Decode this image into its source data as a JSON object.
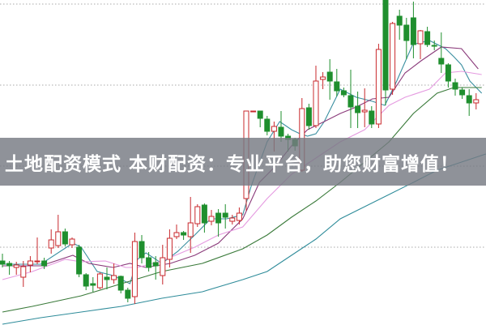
{
  "banner": {
    "text": "土地配资模式 本财配资：专业平台，助您财富增值！"
  },
  "chart_data": {
    "type": "candlestick",
    "title": "",
    "xlabel": "",
    "ylabel": "",
    "ylim": [
      0,
      40
    ],
    "grid": {
      "horizontal": true,
      "style": "dotted",
      "levels": [
        39.5,
        29.5,
        19.5,
        9.5
      ]
    },
    "colors": {
      "up": "#c8282c",
      "down": "#1f8f2e",
      "grid": "#a8a8a8",
      "ma5": "#3a8fa0",
      "ma10": "#8a3a7a",
      "ma20": "#e59ae0",
      "ma60": "#3a7a3a",
      "ma120": "#2f8c9a"
    },
    "candles": [
      [
        7.8,
        8.7,
        7.0,
        7.4
      ],
      [
        7.5,
        7.8,
        6.1,
        7.2
      ],
      [
        7.0,
        7.7,
        6.1,
        7.3
      ],
      [
        5.8,
        7.8,
        4.6,
        7.1
      ],
      [
        7.3,
        8.4,
        6.4,
        7.8
      ],
      [
        7.7,
        10.7,
        7.4,
        7.8
      ],
      [
        7.8,
        8.2,
        6.8,
        7.2
      ],
      [
        9.4,
        11.7,
        8.7,
        10.4
      ],
      [
        9.7,
        13.5,
        9.4,
        11.4
      ],
      [
        11.4,
        11.8,
        9.6,
        9.9
      ],
      [
        9.8,
        10.7,
        9.4,
        10.5
      ],
      [
        9.5,
        9.8,
        5.8,
        6.2
      ],
      [
        6.1,
        6.3,
        4.2,
        4.7
      ],
      [
        5.0,
        5.8,
        4.0,
        4.8
      ],
      [
        4.5,
        6.4,
        4.3,
        6.2
      ],
      [
        5.8,
        7.0,
        4.3,
        5.5
      ],
      [
        5.5,
        7.5,
        5.0,
        6.0
      ],
      [
        5.9,
        6.0,
        3.8,
        4.2
      ],
      [
        4.2,
        4.5,
        2.7,
        3.2
      ],
      [
        3.4,
        11.3,
        2.5,
        10.2
      ],
      [
        10.2,
        11.0,
        7.5,
        8.2
      ],
      [
        8.2,
        8.9,
        6.5,
        7.0
      ],
      [
        7.6,
        8.4,
        5.5,
        7.2
      ],
      [
        6.0,
        9.8,
        4.9,
        8.2
      ],
      [
        8.0,
        11.7,
        7.0,
        10.6
      ],
      [
        10.8,
        12.3,
        10.5,
        11.3
      ],
      [
        11.3,
        11.5,
        10.4,
        11.0
      ],
      [
        10.8,
        15.7,
        8.8,
        12.5
      ],
      [
        12.4,
        14.8,
        12.0,
        14.5
      ],
      [
        14.7,
        14.9,
        11.3,
        12.5
      ],
      [
        12.7,
        14.1,
        12.2,
        13.3
      ],
      [
        13.7,
        14.2,
        10.8,
        12.5
      ],
      [
        13.7,
        14.8,
        11.8,
        13.2
      ],
      [
        12.7,
        13.5,
        12.3,
        13.1
      ],
      [
        12.8,
        14.4,
        12.3,
        13.7
      ],
      [
        15.5,
        26.3,
        14.0,
        26.3
      ],
      [
        26.2,
        26.3,
        26.2,
        26.3
      ],
      [
        26.3,
        26.3,
        24.3,
        25.4
      ],
      [
        25.3,
        25.7,
        23.3,
        23.8
      ],
      [
        23.8,
        25.0,
        21.3,
        24.4
      ],
      [
        24.3,
        26.3,
        22.5,
        23.2
      ],
      [
        23.2,
        23.5,
        21.3,
        22.8
      ],
      [
        22.8,
        23.0,
        21.4,
        22.0
      ],
      [
        19.0,
        27.9,
        18.8,
        26.6
      ],
      [
        26.7,
        27.2,
        24.0,
        24.5
      ],
      [
        24.5,
        31.9,
        24.2,
        30.0
      ],
      [
        30.2,
        31.1,
        29.0,
        30.5
      ],
      [
        31.1,
        32.7,
        27.7,
        30.0
      ],
      [
        29.9,
        31.5,
        28.1,
        28.8
      ],
      [
        28.8,
        29.2,
        28.0,
        28.3
      ],
      [
        28.2,
        31.4,
        24.2,
        26.8
      ],
      [
        26.9,
        28.7,
        24.2,
        26.1
      ],
      [
        26.2,
        29.1,
        24.3,
        26.4
      ],
      [
        26.3,
        26.9,
        24.2,
        24.7
      ],
      [
        24.7,
        34.6,
        24.2,
        33.9
      ],
      [
        40.0,
        40.0,
        27.0,
        28.9
      ],
      [
        29.0,
        37.3,
        28.3,
        37.1
      ],
      [
        38.0,
        38.8,
        35.1,
        36.9
      ],
      [
        36.9,
        37.8,
        32.7,
        35.0
      ],
      [
        37.8,
        39.8,
        32.8,
        34.5
      ],
      [
        34.6,
        36.3,
        32.7,
        36.2
      ],
      [
        36.1,
        36.7,
        34.2,
        34.5
      ],
      [
        34.4,
        35.0,
        33.8,
        34.3
      ],
      [
        32.8,
        36.0,
        31.0,
        32.1
      ],
      [
        32.0,
        32.2,
        29.2,
        30.0
      ],
      [
        29.8,
        30.3,
        28.2,
        29.0
      ],
      [
        28.9,
        29.2,
        27.8,
        28.3
      ],
      [
        28.2,
        29.0,
        25.7,
        27.3
      ],
      [
        27.3,
        28.5,
        26.5,
        27.7
      ]
    ],
    "candle_fields": [
      "open",
      "high",
      "low",
      "close"
    ],
    "moving_averages": [
      {
        "key": "ma5",
        "points": [
          [
            0,
            7.4
          ],
          [
            5.5,
            7.4
          ],
          [
            10.1,
            10.0
          ],
          [
            11.3,
            9.5
          ],
          [
            13.6,
            6.5
          ],
          [
            15.9,
            6.0
          ],
          [
            18.3,
            5.0
          ],
          [
            19.4,
            8.0
          ],
          [
            20.6,
            8.8
          ],
          [
            22.9,
            7.5
          ],
          [
            25.2,
            9.0
          ],
          [
            27.6,
            11.0
          ],
          [
            29.9,
            13.0
          ],
          [
            32.2,
            13.0
          ],
          [
            34.5,
            13.5
          ],
          [
            35.7,
            17.0
          ],
          [
            38,
            22.5
          ],
          [
            39.8,
            25.0
          ],
          [
            41.5,
            24.0
          ],
          [
            42.7,
            23.5
          ],
          [
            43.8,
            23.2
          ],
          [
            45,
            23.5
          ],
          [
            46.2,
            25.0
          ],
          [
            48.5,
            29.0
          ],
          [
            50.8,
            28.0
          ],
          [
            53.1,
            27.5
          ],
          [
            54.9,
            27.0
          ],
          [
            56.6,
            30.0
          ],
          [
            58.9,
            34.5
          ],
          [
            61.3,
            35.0
          ],
          [
            63.6,
            34.0
          ],
          [
            64.8,
            33.0
          ],
          [
            65.9,
            32.0
          ],
          [
            67.1,
            30.0
          ],
          [
            68.8,
            28.5
          ]
        ]
      },
      {
        "key": "ma10",
        "points": [
          [
            0,
            7.2
          ],
          [
            5.5,
            7.2
          ],
          [
            10.1,
            8.5
          ],
          [
            12.4,
            7.5
          ],
          [
            15.9,
            7.0
          ],
          [
            18.3,
            7.5
          ],
          [
            20.6,
            7.0
          ],
          [
            24.1,
            7.5
          ],
          [
            27.6,
            8.5
          ],
          [
            31,
            10
          ],
          [
            34.5,
            13
          ],
          [
            36.9,
            17.5
          ],
          [
            39.2,
            19.5
          ],
          [
            41.5,
            22
          ],
          [
            43.8,
            24
          ],
          [
            46.2,
            25
          ],
          [
            48.5,
            26
          ],
          [
            50.8,
            26.8
          ],
          [
            53.1,
            27.8
          ],
          [
            55.5,
            28
          ],
          [
            57.8,
            31
          ],
          [
            60.1,
            32.5
          ],
          [
            63,
            34.2
          ],
          [
            65.9,
            34
          ],
          [
            68.3,
            31.5
          ]
        ]
      },
      {
        "key": "ma20",
        "points": [
          [
            0,
            5.5
          ],
          [
            4.3,
            6.5
          ],
          [
            9,
            8
          ],
          [
            11.3,
            7.7
          ],
          [
            14.8,
            7.8
          ],
          [
            17.7,
            7
          ],
          [
            19.4,
            7
          ],
          [
            22.9,
            7.8
          ],
          [
            27.6,
            9.5
          ],
          [
            31,
            11
          ],
          [
            34.5,
            12
          ],
          [
            38,
            15.5
          ],
          [
            41.5,
            18.5
          ],
          [
            45,
            20.5
          ],
          [
            48.5,
            22.5
          ],
          [
            52,
            24
          ],
          [
            55.5,
            27
          ],
          [
            57.8,
            28
          ],
          [
            61.3,
            29
          ],
          [
            63.6,
            31
          ],
          [
            65.9,
            31.2
          ],
          [
            68.8,
            30.8
          ]
        ]
      },
      {
        "key": "ma60",
        "points": [
          [
            0,
            1.5
          ],
          [
            4.3,
            2.2
          ],
          [
            11.3,
            3.5
          ],
          [
            17.1,
            5
          ],
          [
            22.9,
            6.5
          ],
          [
            28.7,
            7.5
          ],
          [
            34.5,
            9.3
          ],
          [
            38,
            11
          ],
          [
            41.5,
            13.2
          ],
          [
            45,
            15.2
          ],
          [
            48.5,
            17.5
          ],
          [
            52,
            20
          ],
          [
            55.5,
            22.5
          ],
          [
            59,
            26
          ],
          [
            62.4,
            28.5
          ],
          [
            64.8,
            29.2
          ],
          [
            68.8,
            29.2
          ]
        ]
      },
      {
        "key": "ma120",
        "points": [
          [
            0,
            0
          ],
          [
            5.5,
            0.8
          ],
          [
            11.3,
            1.5
          ],
          [
            17.1,
            2.2
          ],
          [
            22.9,
            3.2
          ],
          [
            28.7,
            4
          ],
          [
            34.5,
            5.5
          ],
          [
            38,
            6.5
          ],
          [
            41.5,
            8.5
          ],
          [
            45,
            10.5
          ],
          [
            48.5,
            13
          ],
          [
            52,
            14.5
          ],
          [
            55.5,
            16
          ],
          [
            59,
            17.5
          ],
          [
            62.4,
            19
          ],
          [
            65.9,
            20
          ],
          [
            69.4,
            21
          ]
        ]
      }
    ]
  }
}
